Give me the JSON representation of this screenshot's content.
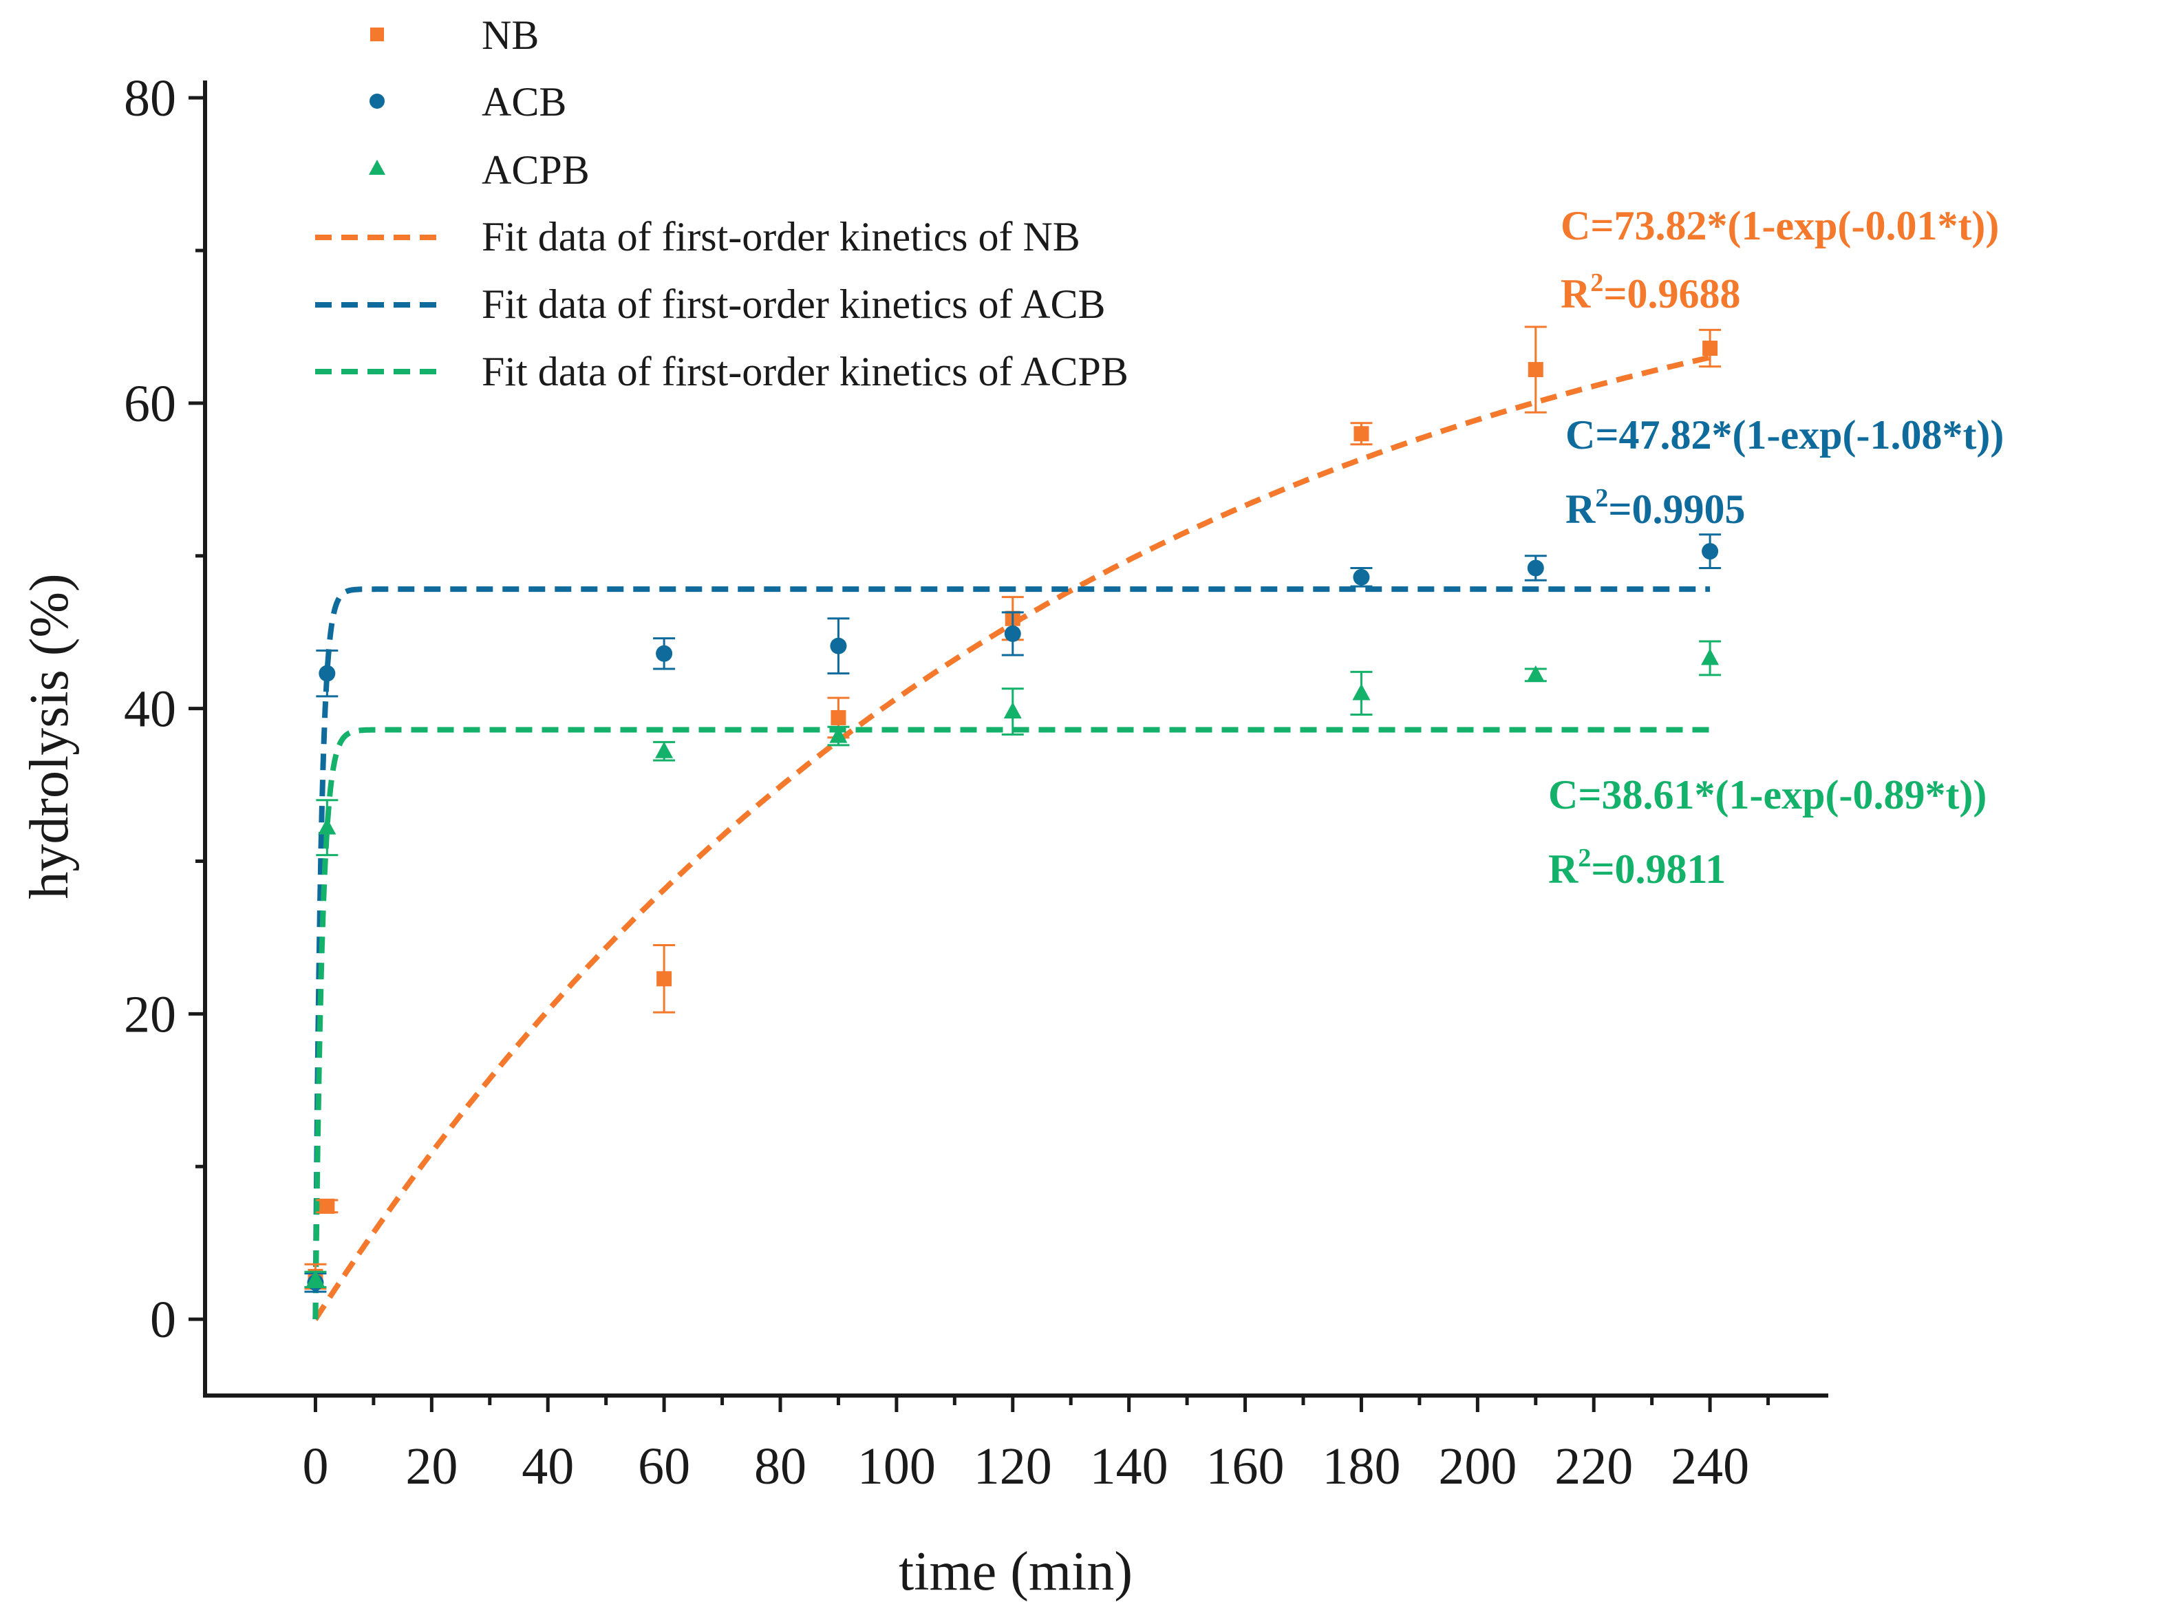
{
  "chart_data": {
    "type": "scatter",
    "title": "",
    "xlabel": "time (min)",
    "ylabel": "hydrolysis (%)",
    "xlim": [
      -19,
      260
    ],
    "ylim": [
      -5,
      81
    ],
    "xticks": [
      0,
      20,
      40,
      60,
      80,
      100,
      120,
      140,
      160,
      180,
      200,
      220,
      240
    ],
    "yticks": [
      0,
      20,
      40,
      60,
      80
    ],
    "legend_position": "top-left",
    "series": [
      {
        "name": "NB",
        "marker": "square",
        "color": "#f4792c",
        "x": [
          0,
          2,
          60,
          90,
          120,
          180,
          210,
          240
        ],
        "y": [
          2.8,
          7.4,
          22.3,
          39.4,
          45.9,
          58.0,
          62.2,
          63.6
        ],
        "error": [
          0.8,
          0.4,
          2.2,
          1.3,
          1.4,
          0.7,
          2.8,
          1.2
        ]
      },
      {
        "name": "ACB",
        "marker": "circle",
        "color": "#0e6b9c",
        "x": [
          0,
          2,
          60,
          90,
          120,
          180,
          210,
          240
        ],
        "y": [
          2.4,
          42.3,
          43.6,
          44.1,
          44.9,
          48.6,
          49.2,
          50.3
        ],
        "error": [
          0.6,
          1.5,
          1.0,
          1.8,
          1.4,
          0.6,
          0.8,
          1.1
        ]
      },
      {
        "name": "ACPB",
        "marker": "triangle",
        "color": "#14b16a",
        "x": [
          0,
          2,
          60,
          90,
          120,
          180,
          210,
          240
        ],
        "y": [
          2.6,
          32.2,
          37.2,
          38.2,
          39.8,
          41.0,
          42.2,
          43.3
        ],
        "error": [
          0.5,
          1.8,
          0.6,
          0.6,
          1.5,
          1.4,
          0.4,
          1.1
        ]
      }
    ],
    "fits": [
      {
        "name": "Fit data of first-order kinetics of NB",
        "color": "#f4792c",
        "a": 73.82,
        "k": 0.008,
        "equation": "C=73.82*(1-exp(-0.01*t))",
        "r2_label": "R",
        "r2_sup": "2",
        "r2_value": "=0.9688"
      },
      {
        "name": "Fit data of first-order kinetics of ACB",
        "color": "#0e6b9c",
        "a": 47.82,
        "k": 1.08,
        "equation": "C=47.82*(1-exp(-1.08*t))",
        "r2_label": "R",
        "r2_sup": "2",
        "r2_value": "=0.9905"
      },
      {
        "name": "Fit data of first-order kinetics of ACPB",
        "color": "#14b16a",
        "a": 38.61,
        "k": 0.89,
        "equation": "C=38.61*(1-exp(-0.89*t))",
        "r2_label": "R",
        "r2_sup": "2",
        "r2_value": "=0.9811"
      }
    ]
  }
}
